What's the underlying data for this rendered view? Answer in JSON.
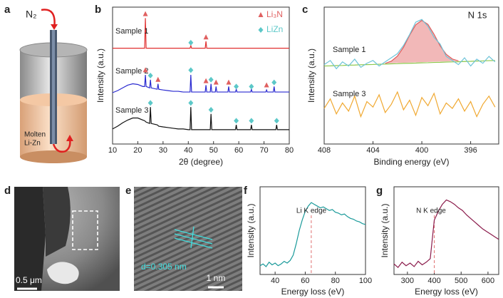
{
  "schematic": {
    "panel_label": "a",
    "gas": "N₂",
    "melt": [
      "Molten",
      "Li-Zn"
    ]
  },
  "micrograph_d": {
    "panel_label": "d",
    "scale_bar": "0.5 μm"
  },
  "micrograph_e": {
    "panel_label": "e",
    "spacing": "d=0.305 nm",
    "scale_bar": "1 nm"
  },
  "chart_data": [
    {
      "type": "line",
      "panel_label": "b",
      "xlabel": "2θ (degree)",
      "ylabel": "Intensity (a.u.)",
      "xlim": [
        10,
        80
      ],
      "xticks": [
        10,
        20,
        30,
        40,
        50,
        60,
        70,
        80
      ],
      "ylim": [
        0,
        100
      ],
      "legend": "upper right",
      "x": [
        10,
        12,
        14,
        16,
        18,
        20,
        22,
        22.7,
        23,
        23.3,
        24.7,
        25,
        25.3,
        27.7,
        28,
        28.3,
        30,
        32,
        34,
        36,
        38,
        40,
        40.7,
        41,
        41.3,
        43,
        45,
        46.7,
        47,
        47.3,
        48.7,
        49,
        49.3,
        50.7,
        51,
        51.3,
        53,
        55.7,
        56,
        56.3,
        58.7,
        59,
        59.3,
        62,
        64.7,
        65,
        65.3,
        68,
        70.7,
        71,
        71.3,
        73.7,
        74,
        74.3,
        74.7,
        75,
        75.3,
        78,
        80
      ],
      "series": [
        {
          "name": "Sample 1",
          "color": "#e03030",
          "values": [
            70,
            70,
            70,
            70,
            70,
            70,
            70,
            70,
            92,
            70,
            70,
            70,
            70,
            70,
            70,
            70,
            70,
            70,
            70,
            70,
            70,
            70,
            70,
            72,
            70,
            70,
            70,
            70,
            75,
            70,
            70,
            70,
            70,
            70,
            70,
            70,
            70,
            70,
            70,
            70,
            70,
            70,
            70,
            70,
            70,
            70,
            70,
            70,
            70,
            70,
            70,
            70,
            70,
            70,
            70,
            70,
            70,
            70,
            70
          ]
        },
        {
          "name": "Sample 2",
          "color": "#2a2ad0",
          "values": [
            37.5,
            39,
            41,
            43,
            44,
            43.5,
            42,
            42,
            50.5,
            42,
            41,
            47,
            41,
            40,
            44,
            40,
            39.5,
            39,
            38.5,
            38.5,
            38,
            38,
            38,
            50.5,
            38,
            38,
            38,
            38,
            43,
            38,
            38,
            44,
            38,
            38,
            42,
            38,
            38,
            38,
            42,
            38,
            38,
            40,
            38,
            38,
            38,
            40,
            38,
            38,
            38,
            39.5,
            38,
            38,
            42,
            38,
            38,
            38,
            38,
            38,
            38
          ]
        },
        {
          "name": "Sample 3",
          "color": "#111111",
          "values": [
            11,
            13,
            15.5,
            17.5,
            19,
            19,
            17.5,
            17,
            16.5,
            16,
            15,
            27,
            15,
            14,
            13.5,
            13,
            12.5,
            12,
            11.5,
            11,
            11,
            10.5,
            10.5,
            27,
            10.5,
            10.5,
            10.5,
            10.5,
            10.5,
            10.5,
            10.5,
            22,
            10.5,
            10.5,
            10.5,
            10.5,
            10.5,
            10.5,
            10.5,
            10.5,
            10.5,
            14,
            10.5,
            10.5,
            10.5,
            14,
            10.5,
            10.5,
            10.5,
            10.5,
            10.5,
            10.5,
            10.5,
            10.5,
            10.5,
            14,
            10.5,
            10.5,
            10.5
          ]
        }
      ],
      "markers": [
        {
          "name": "Li₃N",
          "color": "#e06060",
          "shape": "triangle",
          "x": [
            23,
            47,
            23,
            28,
            47,
            51,
            56,
            71
          ],
          "y": [
            95,
            78,
            54,
            47,
            46,
            45,
            45,
            43
          ]
        },
        {
          "name": "LiZn",
          "color": "#5cc8c8",
          "shape": "diamond",
          "x": [
            41,
            25,
            41,
            49,
            59,
            65,
            74,
            25,
            41,
            49,
            59,
            65,
            75
          ],
          "y": [
            74,
            50,
            54,
            47,
            42,
            42,
            45,
            30,
            30,
            25,
            17,
            17,
            17
          ]
        }
      ]
    },
    {
      "type": "line",
      "panel_label": "c",
      "xlabel": "Binding energy (eV)",
      "ylabel": "Intensity (a.u.)",
      "xlim": [
        408,
        393.7
      ],
      "xticks": [
        408,
        404,
        400,
        396
      ],
      "ylim": [
        0,
        100
      ],
      "annotations": [
        "N 1s"
      ],
      "x": [
        408,
        407.5,
        407,
        406.5,
        406,
        405.5,
        405,
        404.5,
        404,
        403.5,
        403,
        402.5,
        402,
        401.5,
        401,
        400.5,
        400,
        399.5,
        399,
        398.5,
        398,
        397.5,
        397,
        396.5,
        396,
        395.5,
        395,
        394.5,
        394
      ],
      "series": [
        {
          "color": "#e05a5a",
          "fill": "#f2b8b8",
          "values": [
            null,
            null,
            null,
            null,
            null,
            null,
            null,
            null,
            null,
            null,
            58.9,
            60.5,
            64.2,
            70.7,
            79.5,
            87.1,
            90.3,
            87.4,
            80.2,
            71.7,
            65.5,
            62.1,
            60.7,
            null,
            null,
            null,
            null,
            null,
            null
          ]
        },
        {
          "color": "#8cc84b",
          "values": [
            57,
            57.1,
            57.3,
            57.4,
            57.6,
            57.7,
            57.9,
            58,
            58.1,
            58.3,
            58.4,
            58.6,
            58.7,
            58.9,
            59,
            59.1,
            59.3,
            59.4,
            59.6,
            59.7,
            59.9,
            60,
            60.1,
            60.3,
            60.4,
            60.6,
            60.7,
            60.9,
            61
          ]
        },
        {
          "name": "Sample 1",
          "color": "#6fc4d8",
          "values": [
            58,
            61,
            55,
            60,
            57,
            62,
            56,
            59,
            61,
            57,
            60,
            63,
            66,
            72,
            80,
            89,
            91,
            86,
            78,
            73,
            64,
            61,
            58,
            63,
            57,
            62,
            59,
            64,
            60
          ]
        },
        {
          "name": "Sample 3",
          "color": "#f0a830",
          "values": [
            26,
            33,
            22,
            30,
            24,
            35,
            20,
            31,
            27,
            36,
            23,
            29,
            38,
            25,
            32,
            21,
            34,
            28,
            37,
            22,
            30,
            26,
            33,
            24,
            31,
            20,
            29,
            35,
            27
          ]
        }
      ]
    },
    {
      "type": "line",
      "panel_label": "f",
      "xlabel": "Energy loss (eV)",
      "ylabel": "Intensity (a.u.)",
      "xlim": [
        30,
        100
      ],
      "xticks": [
        40,
        60,
        80,
        100
      ],
      "ylim": [
        0,
        100
      ],
      "annotations": [
        "Li K edge"
      ],
      "edge_x": 64,
      "edge_color": "#e07070",
      "x": [
        30,
        32,
        34,
        36,
        38,
        40,
        42,
        44,
        46,
        48,
        50,
        52,
        54,
        56,
        58,
        60,
        62,
        64,
        66,
        68,
        70,
        72,
        74,
        76,
        78,
        80,
        82,
        84,
        86,
        88,
        90,
        92,
        94,
        96,
        98,
        100
      ],
      "series": [
        {
          "color": "#1a9a9a",
          "values": [
            10,
            12,
            9,
            14,
            11,
            13,
            10,
            12,
            15,
            13,
            16,
            22,
            35,
            50,
            62,
            72,
            78,
            82,
            80,
            78,
            76,
            77,
            75,
            73,
            74,
            71,
            70,
            68,
            69,
            66,
            64,
            63,
            61,
            60,
            58,
            57
          ]
        }
      ]
    },
    {
      "type": "line",
      "panel_label": "g",
      "xlabel": "Energy loss (eV)",
      "ylabel": "Intensity (a.u.)",
      "xlim": [
        250,
        640
      ],
      "xticks": [
        300,
        400,
        500,
        600
      ],
      "ylim": [
        0,
        100
      ],
      "annotations": [
        "N K edge"
      ],
      "edge_x": 400,
      "edge_color": "#e07070",
      "x": [
        250,
        265,
        280,
        295,
        310,
        325,
        340,
        355,
        370,
        385,
        400,
        415,
        430,
        445,
        460,
        475,
        490,
        505,
        520,
        535,
        550,
        565,
        580,
        595,
        610,
        625,
        640
      ],
      "series": [
        {
          "color": "#8a1a4a",
          "values": [
            12,
            8,
            14,
            10,
            13,
            9,
            15,
            11,
            14,
            18,
            62,
            72,
            80,
            85,
            83,
            80,
            76,
            73,
            68,
            64,
            60,
            56,
            52,
            49,
            46,
            43,
            40
          ]
        }
      ]
    }
  ]
}
